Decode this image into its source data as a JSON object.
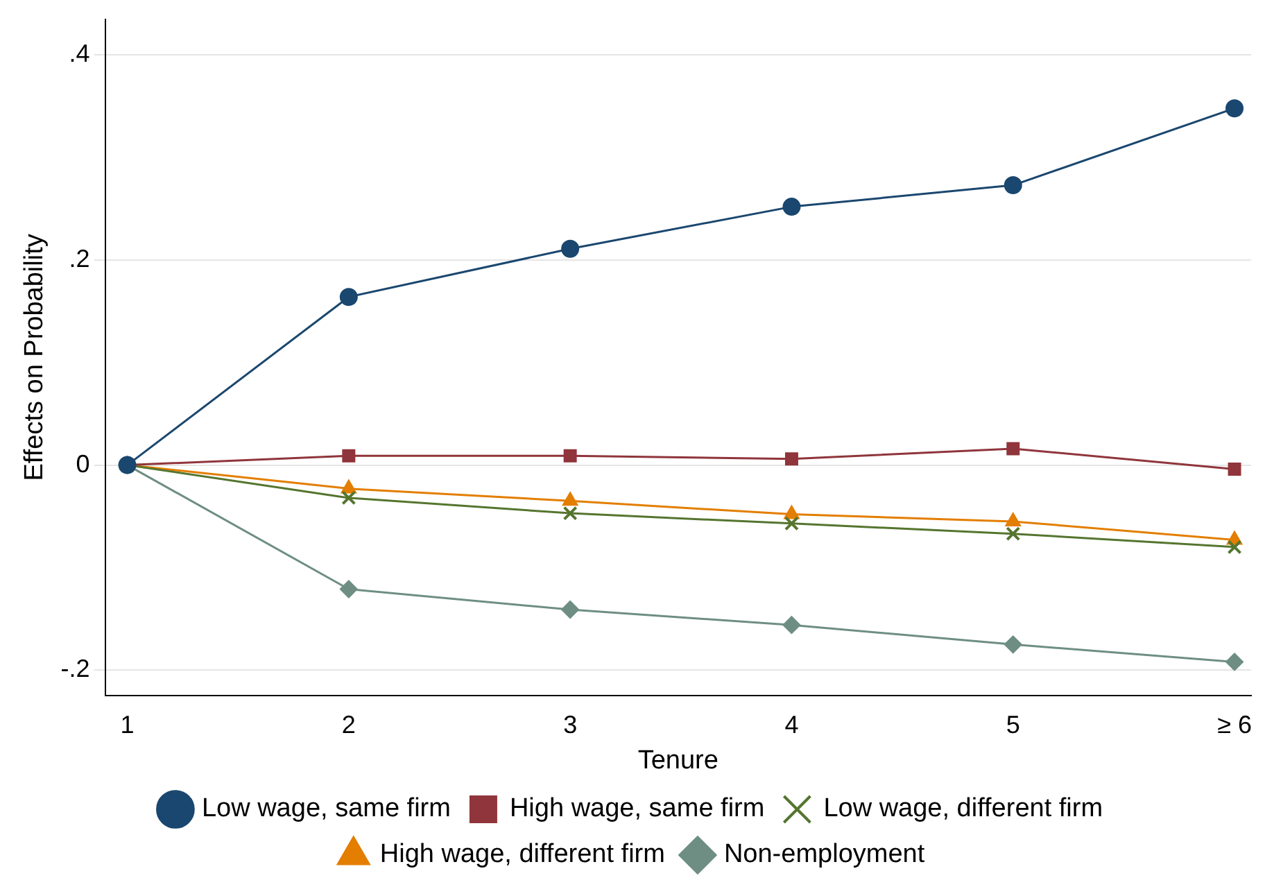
{
  "chart_data": {
    "type": "line",
    "xlabel": "Tenure",
    "ylabel": "Effects on Probability",
    "x": [
      1,
      2,
      3,
      4,
      5,
      6
    ],
    "xlim": [
      0.9,
      6.075
    ],
    "xticks": [
      1,
      2,
      3,
      4,
      5,
      {
        "value": 6,
        "label": "≥ 6"
      }
    ],
    "ylim": [
      -0.225,
      0.435
    ],
    "yticks": [
      {
        "value": -0.2,
        "label": "-.2"
      },
      0,
      {
        "value": 0.2,
        "label": ".2"
      },
      {
        "value": 0.4,
        "label": ".4"
      }
    ],
    "grid": "y",
    "legend": "bottom",
    "line_style": "solid",
    "series": [
      {
        "name": "Low wage, same firm",
        "color": "#1a476f",
        "marker": "circle",
        "values": [
          0,
          0.164,
          0.211,
          0.252,
          0.273,
          0.348
        ]
      },
      {
        "name": "High wage, same firm",
        "color": "#90353b",
        "marker": "square",
        "values": [
          0,
          0.009,
          0.009,
          0.006,
          0.016,
          -0.004
        ]
      },
      {
        "name": "Low wage, different firm",
        "color": "#55752f",
        "marker": "cross",
        "values": [
          0,
          -0.032,
          -0.047,
          -0.057,
          -0.067,
          -0.08
        ]
      },
      {
        "name": "High wage, different firm",
        "color": "#e37e00",
        "marker": "triangle",
        "values": [
          0,
          -0.023,
          -0.035,
          -0.048,
          -0.055,
          -0.073
        ]
      },
      {
        "name": "Non-employment",
        "color": "#6e8e84",
        "marker": "diamond",
        "values": [
          0,
          -0.121,
          -0.141,
          -0.156,
          -0.175,
          -0.192
        ]
      }
    ]
  }
}
